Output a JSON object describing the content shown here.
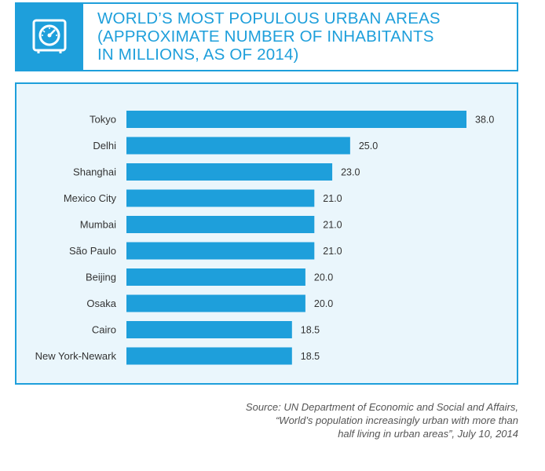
{
  "header": {
    "title_lines": [
      "WORLD’S MOST POPULOUS URBAN AREAS",
      "(APPROXIMATE NUMBER OF INHABITANTS",
      "IN MILLIONS, AS OF 2014)"
    ],
    "icon": "gauge-icon"
  },
  "source": {
    "lines": [
      "Source: UN Department of Economic and Social and Affairs,",
      "“World’s population increasingly urban with more than",
      "half living in urban areas”, July 10, 2014"
    ]
  },
  "colors": {
    "accent": "#1e9fdb",
    "bar": "#1e9fdb",
    "chart_background": "#eaf6fc",
    "text": "#333333"
  },
  "chart_data": {
    "type": "bar",
    "orientation": "horizontal",
    "title": "WORLD’S MOST POPULOUS URBAN AREAS (APPROXIMATE NUMBER OF INHABITANTS IN MILLIONS, AS OF 2014)",
    "categories": [
      "Tokyo",
      "Delhi",
      "Shanghai",
      "Mexico City",
      "Mumbai",
      "São Paulo",
      "Beijing",
      "Osaka",
      "Cairo",
      "New York-Newark"
    ],
    "values": [
      38.0,
      25.0,
      23.0,
      21.0,
      21.0,
      21.0,
      20.0,
      20.0,
      18.5,
      18.5
    ],
    "value_labels": [
      "38.0",
      "25.0",
      "23.0",
      "21.0",
      "21.0",
      "21.0",
      "20.0",
      "20.0",
      "18.5",
      "18.5"
    ],
    "xlabel": "",
    "ylabel": "",
    "xlim": [
      0,
      38
    ],
    "grid": false,
    "legend": "none"
  }
}
